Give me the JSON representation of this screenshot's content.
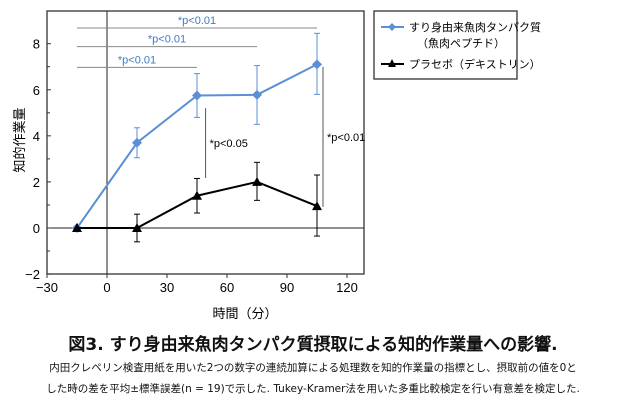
{
  "chart_data": {
    "type": "line",
    "xlabel": "時間（分）",
    "ylabel": "知的作業量",
    "xlim": [
      -30,
      120
    ],
    "ylim": [
      -2,
      9.4
    ],
    "xticks": [
      -30,
      0,
      30,
      60,
      90,
      120
    ],
    "yticks": [
      -2,
      0,
      2,
      4,
      6,
      8
    ],
    "grid": false,
    "legend_position": "top-right outside",
    "series": [
      {
        "name": "すり身由来魚肉タンパク質",
        "name2": "（魚肉ペプチド）",
        "color": "#5b8fd6",
        "marker": "diamond",
        "x": [
          -15,
          15,
          45,
          75,
          105
        ],
        "y": [
          0,
          3.7,
          5.75,
          5.78,
          7.1
        ],
        "err_low": [
          0,
          3.05,
          4.8,
          4.5,
          5.8
        ],
        "err_high": [
          0,
          4.35,
          6.7,
          7.05,
          8.45
        ]
      },
      {
        "name": "プラセボ（デキストリン）",
        "color": "#000000",
        "marker": "triangle",
        "x": [
          -15,
          15,
          45,
          75,
          105
        ],
        "y": [
          0,
          0,
          1.4,
          2.0,
          0.95
        ],
        "err_low": [
          0,
          -0.6,
          0.65,
          1.2,
          -0.35
        ],
        "err_high": [
          0,
          0.6,
          2.15,
          2.85,
          2.3
        ]
      }
    ],
    "annotations": [
      {
        "text": "*p<0.01",
        "kind": "h",
        "x1": -15,
        "x2": 105,
        "y": 8.68,
        "color": "#3a7cc4"
      },
      {
        "text": "*p<0.01",
        "kind": "h",
        "x1": -15,
        "x2": 75,
        "y": 7.87,
        "color": "#3a7cc4"
      },
      {
        "text": "*p<0.01",
        "kind": "h",
        "x1": -15,
        "x2": 45,
        "y": 6.97,
        "color": "#3a7cc4"
      },
      {
        "text": "*p<0.05",
        "kind": "v",
        "x": 49.3,
        "y1": 2.17,
        "y2": 5.2,
        "color": "#000000"
      },
      {
        "text": "*p<0.01",
        "kind": "v",
        "x": 108,
        "y1": 0.92,
        "y2": 7.0,
        "color": "#000000"
      }
    ]
  },
  "caption": {
    "title": "図3. すり身由来魚肉タンパク質摂取による知的作業量への影響.",
    "line1": "内田クレペリン検査用紙を用いた2つの数字の連続加算による処理数を知的作業量の指標とし、摂取前の値を0と",
    "line2": "した時の差を平均±標準誤差(n = 19)で示した. Tukey-Kramer法を用いた多重比較検定を行い有意差を検定した."
  }
}
